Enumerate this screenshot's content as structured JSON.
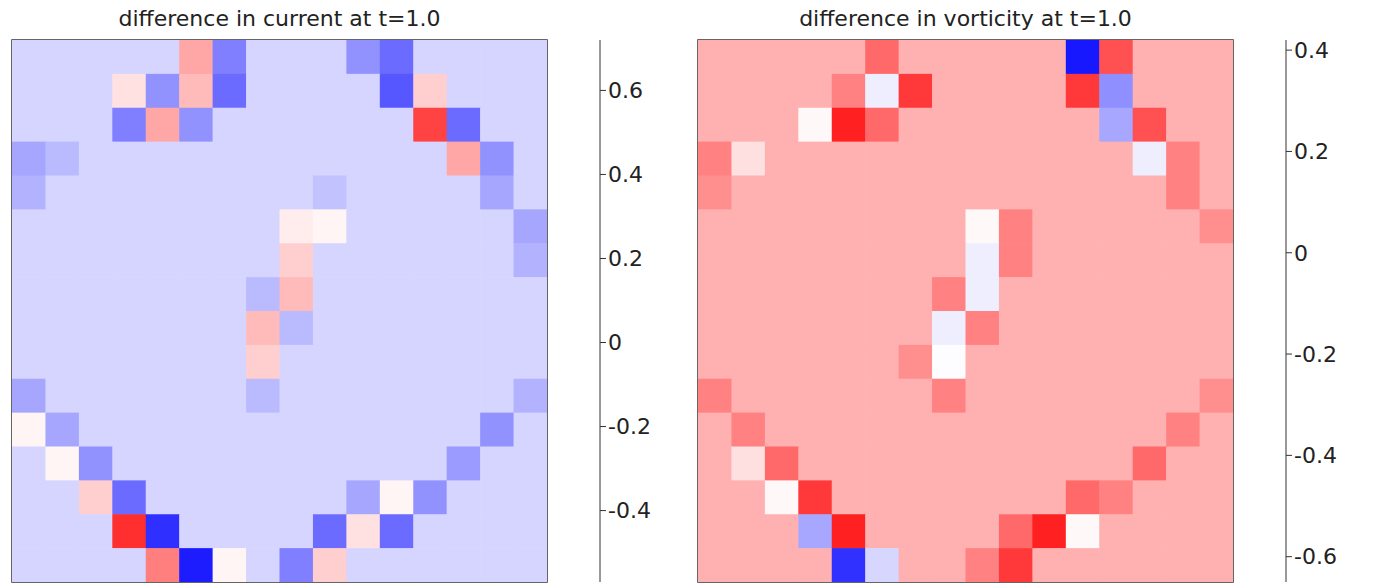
{
  "chart_data": [
    {
      "type": "heatmap",
      "title": "difference in current at t=1.0",
      "tick_labels": false,
      "colorbar_range": [
        -0.57,
        0.72
      ],
      "colorbar_ticks": [
        -0.4,
        -0.2,
        0,
        0.2,
        0.4,
        0.6
      ],
      "cells": [
        [
          -0.03,
          -0.03,
          -0.03,
          -0.03,
          -0.03,
          0.3,
          -0.25,
          -0.03,
          -0.03,
          -0.03,
          -0.2,
          -0.3,
          -0.03,
          -0.03,
          -0.03,
          -0.03
        ],
        [
          -0.03,
          -0.03,
          -0.03,
          0.15,
          -0.2,
          0.25,
          -0.3,
          -0.03,
          -0.03,
          -0.03,
          -0.03,
          -0.35,
          0.2,
          -0.03,
          -0.03,
          -0.03
        ],
        [
          -0.03,
          -0.03,
          -0.03,
          -0.25,
          0.3,
          -0.2,
          -0.03,
          -0.03,
          -0.03,
          -0.03,
          -0.03,
          -0.03,
          0.55,
          -0.3,
          -0.03,
          -0.03
        ],
        [
          -0.15,
          -0.1,
          -0.03,
          -0.03,
          -0.03,
          -0.03,
          -0.03,
          -0.03,
          -0.03,
          -0.03,
          -0.03,
          -0.03,
          -0.03,
          0.3,
          -0.2,
          -0.03
        ],
        [
          -0.12,
          -0.03,
          -0.03,
          -0.03,
          -0.03,
          -0.03,
          -0.03,
          -0.03,
          -0.03,
          -0.08,
          -0.03,
          -0.03,
          -0.03,
          -0.03,
          -0.15,
          -0.03
        ],
        [
          -0.03,
          -0.03,
          -0.03,
          -0.03,
          -0.03,
          -0.03,
          -0.03,
          -0.03,
          0.12,
          0.1,
          -0.03,
          -0.03,
          -0.03,
          -0.03,
          -0.03,
          -0.15
        ],
        [
          -0.03,
          -0.03,
          -0.03,
          -0.03,
          -0.03,
          -0.03,
          -0.03,
          -0.03,
          0.2,
          -0.03,
          -0.03,
          -0.03,
          -0.03,
          -0.03,
          -0.03,
          -0.12
        ],
        [
          -0.03,
          -0.03,
          -0.03,
          -0.03,
          -0.03,
          -0.03,
          -0.03,
          -0.1,
          0.25,
          -0.03,
          -0.03,
          -0.03,
          -0.03,
          -0.03,
          -0.03,
          -0.03
        ],
        [
          -0.03,
          -0.03,
          -0.03,
          -0.03,
          -0.03,
          -0.03,
          -0.03,
          0.25,
          -0.1,
          -0.03,
          -0.03,
          -0.03,
          -0.03,
          -0.03,
          -0.03,
          -0.03
        ],
        [
          -0.03,
          -0.03,
          -0.03,
          -0.03,
          -0.03,
          -0.03,
          -0.03,
          0.2,
          -0.03,
          -0.03,
          -0.03,
          -0.03,
          -0.03,
          -0.03,
          -0.03,
          -0.03
        ],
        [
          -0.15,
          -0.03,
          -0.03,
          -0.03,
          -0.03,
          -0.03,
          -0.03,
          -0.1,
          -0.03,
          -0.03,
          -0.03,
          -0.03,
          -0.03,
          -0.03,
          -0.03,
          -0.12
        ],
        [
          0.1,
          -0.15,
          -0.03,
          -0.03,
          -0.03,
          -0.03,
          -0.03,
          -0.03,
          -0.03,
          -0.03,
          -0.03,
          -0.03,
          -0.03,
          -0.03,
          -0.2,
          -0.03
        ],
        [
          -0.03,
          0.1,
          -0.2,
          -0.03,
          -0.03,
          -0.03,
          -0.03,
          -0.03,
          -0.03,
          -0.03,
          -0.03,
          -0.03,
          -0.03,
          -0.18,
          -0.03,
          -0.03
        ],
        [
          -0.03,
          -0.03,
          0.2,
          -0.3,
          -0.03,
          -0.03,
          -0.03,
          -0.03,
          -0.03,
          -0.03,
          -0.15,
          0.1,
          -0.2,
          -0.03,
          -0.03,
          -0.03
        ],
        [
          -0.03,
          -0.03,
          -0.03,
          0.6,
          -0.45,
          -0.03,
          -0.03,
          -0.03,
          -0.03,
          -0.3,
          0.15,
          -0.3,
          -0.03,
          -0.03,
          -0.03,
          -0.03
        ],
        [
          -0.03,
          -0.03,
          -0.03,
          -0.03,
          0.4,
          -0.5,
          0.1,
          -0.03,
          -0.25,
          0.2,
          -0.03,
          -0.03,
          -0.03,
          -0.03,
          -0.03,
          -0.03
        ]
      ]
    },
    {
      "type": "heatmap",
      "title": "difference in vorticity at t=1.0",
      "tick_labels": false,
      "colorbar_range": [
        -0.65,
        0.42
      ],
      "colorbar_ticks": [
        -0.6,
        -0.4,
        -0.2,
        0,
        0.2,
        0.4
      ],
      "cells": [
        [
          0.05,
          0.05,
          0.05,
          0.05,
          0.05,
          0.2,
          0.05,
          0.05,
          0.05,
          0.05,
          0.05,
          -0.6,
          0.25,
          0.05,
          0.05,
          0.05
        ],
        [
          0.05,
          0.05,
          0.05,
          0.05,
          0.15,
          -0.15,
          0.3,
          0.05,
          0.05,
          0.05,
          0.05,
          0.3,
          -0.35,
          0.05,
          0.05,
          0.05
        ],
        [
          0.05,
          0.05,
          0.05,
          -0.1,
          0.35,
          0.2,
          0.05,
          0.05,
          0.05,
          0.05,
          0.05,
          0.05,
          -0.3,
          0.25,
          0.05,
          0.05
        ],
        [
          0.15,
          -0.05,
          0.05,
          0.05,
          0.05,
          0.05,
          0.05,
          0.05,
          0.05,
          0.05,
          0.05,
          0.05,
          0.05,
          -0.15,
          0.15,
          0.05
        ],
        [
          0.12,
          0.05,
          0.05,
          0.05,
          0.05,
          0.05,
          0.05,
          0.05,
          0.05,
          0.05,
          0.05,
          0.05,
          0.05,
          0.05,
          0.15,
          0.05
        ],
        [
          0.05,
          0.05,
          0.05,
          0.05,
          0.05,
          0.05,
          0.05,
          0.05,
          -0.1,
          0.15,
          0.05,
          0.05,
          0.05,
          0.05,
          0.05,
          0.12
        ],
        [
          0.05,
          0.05,
          0.05,
          0.05,
          0.05,
          0.05,
          0.05,
          0.05,
          -0.15,
          0.15,
          0.05,
          0.05,
          0.05,
          0.05,
          0.05,
          0.05
        ],
        [
          0.05,
          0.05,
          0.05,
          0.05,
          0.05,
          0.05,
          0.05,
          0.15,
          -0.15,
          0.05,
          0.05,
          0.05,
          0.05,
          0.05,
          0.05,
          0.05
        ],
        [
          0.05,
          0.05,
          0.05,
          0.05,
          0.05,
          0.05,
          0.05,
          -0.15,
          0.15,
          0.05,
          0.05,
          0.05,
          0.05,
          0.05,
          0.05,
          0.05
        ],
        [
          0.05,
          0.05,
          0.05,
          0.05,
          0.05,
          0.05,
          0.12,
          -0.12,
          0.05,
          0.05,
          0.05,
          0.05,
          0.05,
          0.05,
          0.05,
          0.05
        ],
        [
          0.15,
          0.05,
          0.05,
          0.05,
          0.05,
          0.05,
          0.05,
          0.15,
          0.05,
          0.05,
          0.05,
          0.05,
          0.05,
          0.05,
          0.05,
          0.12
        ],
        [
          0.05,
          0.15,
          0.05,
          0.05,
          0.05,
          0.05,
          0.05,
          0.05,
          0.05,
          0.05,
          0.05,
          0.05,
          0.05,
          0.05,
          0.15,
          0.05
        ],
        [
          0.05,
          -0.05,
          0.2,
          0.05,
          0.05,
          0.05,
          0.05,
          0.05,
          0.05,
          0.05,
          0.05,
          0.05,
          0.05,
          0.2,
          0.05,
          0.05
        ],
        [
          0.05,
          0.05,
          -0.1,
          0.3,
          0.05,
          0.05,
          0.05,
          0.05,
          0.05,
          0.05,
          0.05,
          0.2,
          0.15,
          0.05,
          0.05,
          0.05
        ],
        [
          0.05,
          0.05,
          0.05,
          -0.3,
          0.35,
          0.05,
          0.05,
          0.05,
          0.05,
          0.2,
          0.35,
          -0.1,
          0.05,
          0.05,
          0.05,
          0.05
        ],
        [
          0.05,
          0.05,
          0.05,
          0.05,
          -0.55,
          -0.2,
          0.05,
          0.05,
          0.15,
          0.3,
          0.05,
          0.05,
          0.05,
          0.05,
          0.05,
          0.05
        ]
      ]
    }
  ]
}
